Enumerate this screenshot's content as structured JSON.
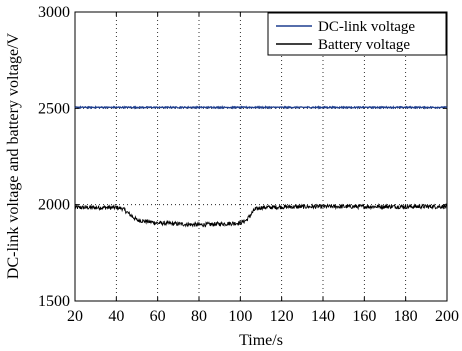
{
  "chart_data": {
    "type": "line",
    "title": "",
    "xlabel": "Time/s",
    "ylabel": "DC-link voltage and battery voltage/V",
    "xlim": [
      20,
      200
    ],
    "ylim": [
      1500,
      3000
    ],
    "xticks": [
      20,
      40,
      60,
      80,
      100,
      120,
      140,
      160,
      180,
      200
    ],
    "yticks": [
      1500,
      2000,
      2500,
      3000
    ],
    "grid": "dotted",
    "legend_position": "top-right",
    "series": [
      {
        "name": "DC-link voltage",
        "color": "#1f3f8f",
        "x": [
          20,
          200
        ],
        "y": [
          2505,
          2505
        ]
      },
      {
        "name": "Battery voltage",
        "color": "#000000",
        "x": [
          20,
          40,
          43,
          47,
          50,
          60,
          80,
          100,
          103,
          107,
          110,
          120,
          140,
          160,
          180,
          200
        ],
        "y": [
          1985,
          1985,
          1980,
          1945,
          1920,
          1905,
          1895,
          1905,
          1920,
          1975,
          1985,
          1988,
          1990,
          1990,
          1990,
          1990
        ]
      }
    ]
  }
}
